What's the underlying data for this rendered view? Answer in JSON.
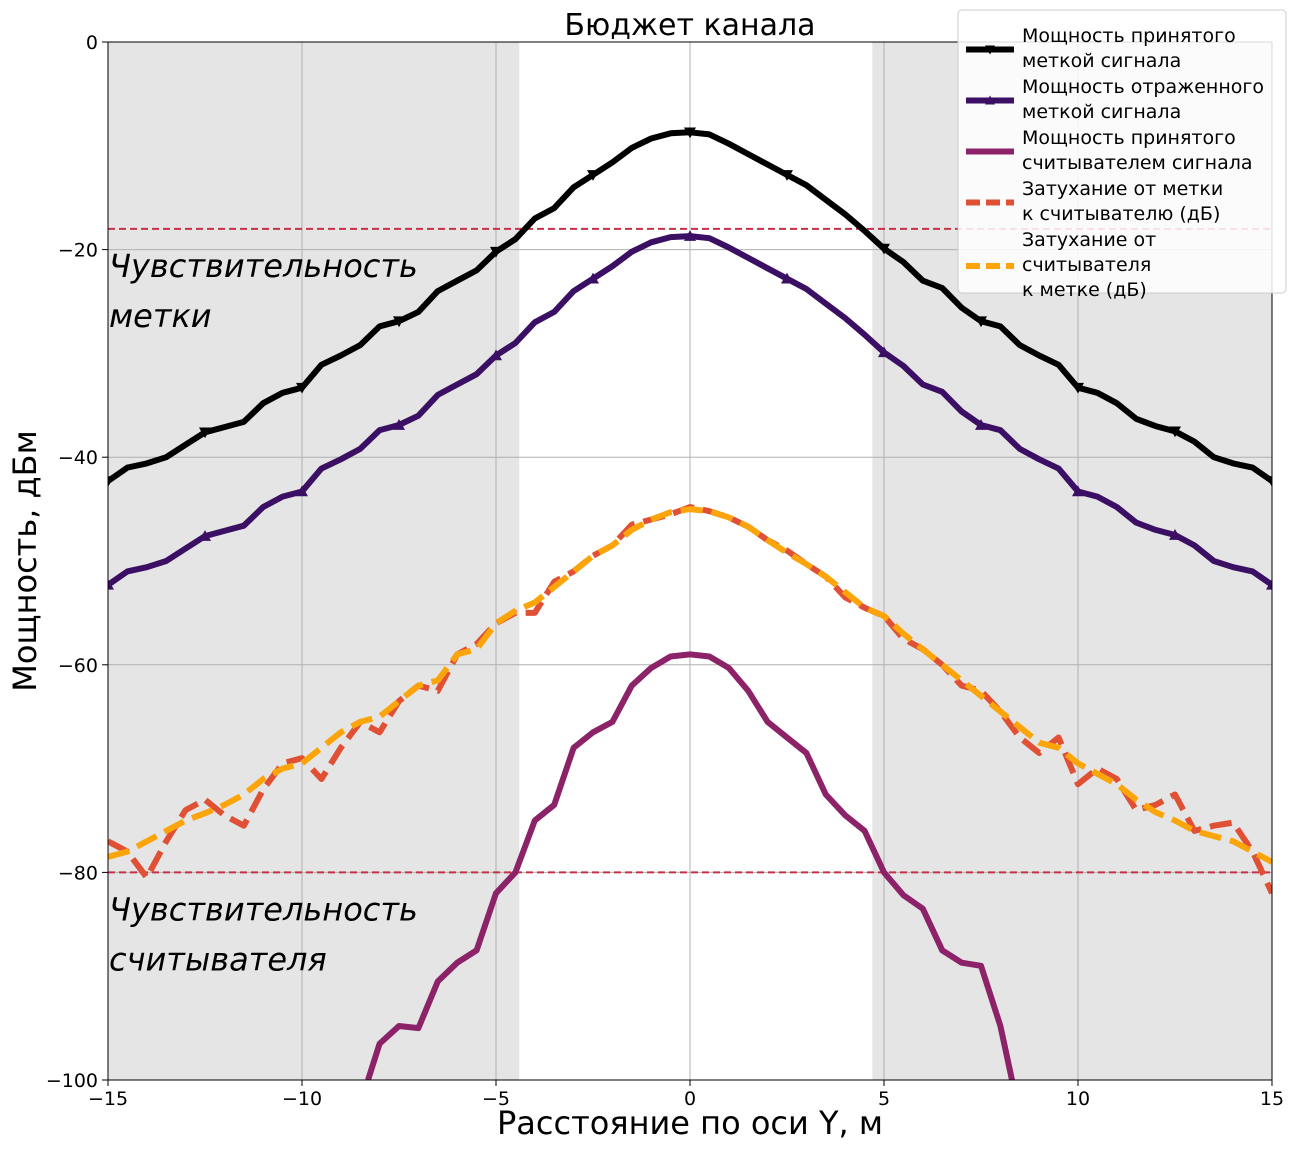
{
  "chart_data": {
    "type": "line",
    "title": "Бюджет канала",
    "xlabel": "Расстояние по оси Y, м",
    "ylabel": "Мощность, дБм",
    "xlim": [
      -15,
      15
    ],
    "ylim": [
      -100,
      0
    ],
    "xticks": [
      -15,
      -10,
      -5,
      0,
      5,
      10,
      15
    ],
    "yticks": [
      0,
      -20,
      -40,
      -60,
      -80,
      -100
    ],
    "grid": true,
    "legend_position": "top-right",
    "shaded_regions": [
      [
        -15,
        -4.4
      ],
      [
        4.7,
        15
      ]
    ],
    "threshold_lines": [
      {
        "y": -18,
        "label_lines": [
          "Чувствительность",
          "метки"
        ]
      },
      {
        "y": -80,
        "label_lines": [
          "Чувствительность",
          "считывателя"
        ]
      }
    ],
    "series": [
      {
        "name_lines": [
          "Мощность принятого",
          "меткой сигнала"
        ],
        "color": "#000000",
        "style": "solid",
        "marker": "triangle-down",
        "x": [
          -15,
          -14.5,
          -14,
          -13.5,
          -13,
          -12.5,
          -12,
          -11.5,
          -11,
          -10.5,
          -10,
          -9.5,
          -9,
          -8.5,
          -8,
          -7.5,
          -7,
          -6.5,
          -6,
          -5.5,
          -5,
          -4.5,
          -4,
          -3.5,
          -3,
          -2.5,
          -2,
          -1.5,
          -1,
          -0.5,
          0,
          0.5,
          1,
          1.5,
          2,
          2.5,
          3,
          3.5,
          4,
          4.5,
          5,
          5.5,
          6,
          6.5,
          7,
          7.5,
          8,
          8.5,
          9,
          9.5,
          10,
          10.5,
          11,
          11.5,
          12,
          12.5,
          13,
          13.5,
          14,
          14.5,
          15
        ],
        "y": [
          -42.3,
          -41,
          -40.6,
          -40,
          -38.8,
          -37.6,
          -37.1,
          -36.6,
          -34.8,
          -33.8,
          -33.3,
          -31.1,
          -30.2,
          -29.2,
          -27.4,
          -26.9,
          -26,
          -24,
          -23,
          -22,
          -20.2,
          -19,
          -17,
          -16,
          -14,
          -12.8,
          -11.6,
          -10.2,
          -9.3,
          -8.8,
          -8.7,
          -8.9,
          -9.8,
          -10.8,
          -11.8,
          -12.8,
          -13.8,
          -15.2,
          -16.6,
          -18.2,
          -19.9,
          -21.2,
          -23,
          -23.7,
          -25.6,
          -26.9,
          -27.4,
          -29.2,
          -30.2,
          -31.1,
          -33.3,
          -33.8,
          -34.8,
          -36.3,
          -37,
          -37.5,
          -38.5,
          -40,
          -40.6,
          -41,
          -42.3
        ]
      },
      {
        "name_lines": [
          "Мощность отраженного",
          "меткой сигнала"
        ],
        "color": "#3b0f63",
        "style": "solid",
        "marker": "triangle-up",
        "x": [
          -15,
          -14.5,
          -14,
          -13.5,
          -13,
          -12.5,
          -12,
          -11.5,
          -11,
          -10.5,
          -10,
          -9.5,
          -9,
          -8.5,
          -8,
          -7.5,
          -7,
          -6.5,
          -6,
          -5.5,
          -5,
          -4.5,
          -4,
          -3.5,
          -3,
          -2.5,
          -2,
          -1.5,
          -1,
          -0.5,
          0,
          0.5,
          1,
          1.5,
          2,
          2.5,
          3,
          3.5,
          4,
          4.5,
          5,
          5.5,
          6,
          6.5,
          7,
          7.5,
          8,
          8.5,
          9,
          9.5,
          10,
          10.5,
          11,
          11.5,
          12,
          12.5,
          13,
          13.5,
          14,
          14.5,
          15
        ],
        "y": [
          -52.3,
          -51,
          -50.6,
          -50,
          -48.8,
          -47.6,
          -47.1,
          -46.6,
          -44.8,
          -43.8,
          -43.3,
          -41.1,
          -40.2,
          -39.2,
          -37.4,
          -36.9,
          -36,
          -34,
          -33,
          -32,
          -30.2,
          -29,
          -27,
          -26,
          -24,
          -22.8,
          -21.6,
          -20.2,
          -19.3,
          -18.8,
          -18.7,
          -18.9,
          -19.8,
          -20.8,
          -21.8,
          -22.8,
          -23.8,
          -25.2,
          -26.6,
          -28.2,
          -29.9,
          -31.2,
          -33,
          -33.7,
          -35.6,
          -36.9,
          -37.4,
          -39.2,
          -40.2,
          -41.1,
          -43.3,
          -43.8,
          -44.8,
          -46.3,
          -47,
          -47.5,
          -48.5,
          -50,
          -50.6,
          -51,
          -52.3
        ]
      },
      {
        "name_lines": [
          "Мощность принятого",
          "считывателем сигнала"
        ],
        "color": "#8c2369",
        "style": "solid",
        "marker": "none",
        "x": [
          -8.3,
          -8,
          -7.5,
          -7,
          -6.5,
          -6,
          -5.5,
          -5,
          -4.5,
          -4,
          -3.5,
          -3,
          -2.5,
          -2,
          -1.5,
          -1,
          -0.5,
          0,
          0.5,
          1,
          1.5,
          2,
          2.5,
          3,
          3.5,
          4,
          4.5,
          5,
          5.5,
          6,
          6.5,
          7,
          7.5,
          8,
          8.3
        ],
        "y": [
          -100,
          -96.5,
          -94.8,
          -95,
          -90.5,
          -88.7,
          -87.5,
          -82,
          -80,
          -75,
          -73.5,
          -68,
          -66.5,
          -65.5,
          -62,
          -60.3,
          -59.2,
          -59,
          -59.2,
          -60.3,
          -62.5,
          -65.5,
          -67,
          -68.5,
          -72.5,
          -74.5,
          -76,
          -80,
          -82.2,
          -83.5,
          -87.5,
          -88.7,
          -89,
          -94.8,
          -100
        ]
      },
      {
        "name_lines": [
          "Затухание от метки",
          "к считывателю (дБ)"
        ],
        "color": "#e05035",
        "style": "dashed",
        "marker": "none",
        "x": [
          -15,
          -14.5,
          -14,
          -13.5,
          -13,
          -12.5,
          -12,
          -11.5,
          -11,
          -10.5,
          -10,
          -9.5,
          -9,
          -8.5,
          -8,
          -7.5,
          -7,
          -6.5,
          -6,
          -5.5,
          -5,
          -4.5,
          -4,
          -3.5,
          -3,
          -2.5,
          -2,
          -1.5,
          -1,
          -0.5,
          0,
          0.5,
          1,
          1.5,
          2,
          2.5,
          3,
          3.5,
          4,
          4.5,
          5,
          5.5,
          6,
          6.5,
          7,
          7.5,
          8,
          8.5,
          9,
          9.5,
          10,
          10.5,
          11,
          11.5,
          12,
          12.5,
          13,
          13.5,
          14,
          14.5,
          15
        ],
        "y": [
          -77,
          -78,
          -80.5,
          -77,
          -74,
          -73,
          -74.5,
          -75.5,
          -72,
          -69.5,
          -69,
          -71,
          -68,
          -65.5,
          -66.5,
          -63.5,
          -62,
          -62.5,
          -59,
          -58,
          -56,
          -55,
          -55,
          -52,
          -51,
          -49.5,
          -48.5,
          -46.5,
          -46,
          -45.5,
          -44.8,
          -45.2,
          -45.8,
          -46.7,
          -48,
          -49,
          -50.3,
          -51.5,
          -53.5,
          -54.5,
          -55.3,
          -57.5,
          -58.5,
          -60,
          -62,
          -62.5,
          -64.5,
          -67,
          -68.5,
          -67,
          -71.5,
          -70,
          -71,
          -74,
          -73.5,
          -72.5,
          -76,
          -75.5,
          -75.2,
          -78,
          -82
        ]
      },
      {
        "name_lines": [
          "Затухание от",
          "считывателя",
          "к метке (дБ)"
        ],
        "color": "#fca50a",
        "style": "dashed",
        "marker": "none",
        "x": [
          -15,
          -14.5,
          -14,
          -13.5,
          -13,
          -12.5,
          -12,
          -11.5,
          -11,
          -10.5,
          -10,
          -9.5,
          -9,
          -8.5,
          -8,
          -7.5,
          -7,
          -6.5,
          -6,
          -5.5,
          -5,
          -4.5,
          -4,
          -3.5,
          -3,
          -2.5,
          -2,
          -1.5,
          -1,
          -0.5,
          0,
          0.5,
          1,
          1.5,
          2,
          2.5,
          3,
          3.5,
          4,
          4.5,
          5,
          5.5,
          6,
          6.5,
          7,
          7.5,
          8,
          8.5,
          9,
          9.5,
          10,
          10.5,
          11,
          11.5,
          12,
          12.5,
          13,
          13.5,
          14,
          14.5,
          15
        ],
        "y": [
          -78.5,
          -78,
          -77,
          -76,
          -75,
          -74.3,
          -73.5,
          -72.5,
          -71,
          -70,
          -69.5,
          -68,
          -66.5,
          -65.5,
          -65,
          -63.5,
          -62,
          -61.5,
          -59,
          -58.5,
          -56,
          -54.8,
          -54,
          -52.5,
          -51,
          -49.5,
          -48.5,
          -47,
          -46,
          -45.3,
          -45,
          -45.2,
          -45.8,
          -46.7,
          -48,
          -49.2,
          -50.3,
          -51.5,
          -53,
          -54.5,
          -55.3,
          -57,
          -58.5,
          -60,
          -61.5,
          -63,
          -64.5,
          -66,
          -67.5,
          -68,
          -69.5,
          -70.5,
          -71.5,
          -73,
          -74.2,
          -75,
          -76,
          -76.5,
          -77,
          -78,
          -79
        ]
      }
    ]
  }
}
